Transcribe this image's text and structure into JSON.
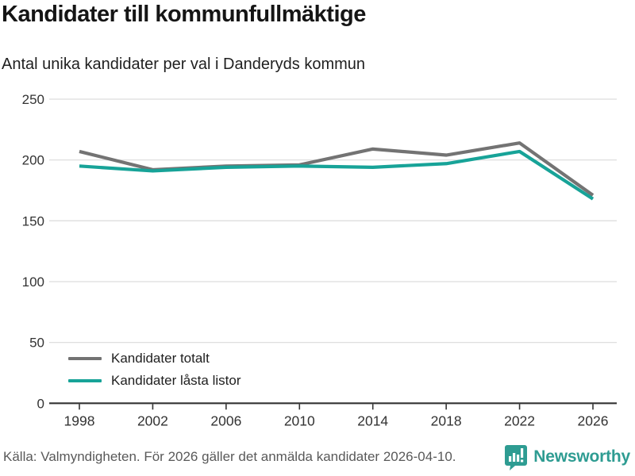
{
  "header": {
    "title": "Kandidater till kommunfullmäktige",
    "subtitle": "Antal unika kandidater per val i Danderyds kommun"
  },
  "chart_data": {
    "type": "line",
    "x": [
      1998,
      2002,
      2006,
      2010,
      2014,
      2018,
      2022,
      2026
    ],
    "series": [
      {
        "name": "Kandidater totalt",
        "color": "#737373",
        "values": [
          207,
          192,
          195,
          196,
          209,
          204,
          214,
          171
        ]
      },
      {
        "name": "Kandidater låsta listor",
        "color": "#17a398",
        "values": [
          195,
          191,
          194,
          195,
          194,
          197,
          207,
          168
        ]
      }
    ],
    "ylim": [
      0,
      250
    ],
    "yticks": [
      0,
      50,
      100,
      150,
      200,
      250
    ],
    "grid": "horizontal",
    "legend_position": "inside-bottom-left"
  },
  "footer": {
    "source": "Källa: Valmyndigheten. För 2026 gäller det anmälda kandidater 2026-04-10.",
    "logo_text": "Newsworthy"
  },
  "colors": {
    "accent_teal": "#17a398",
    "line_gray": "#737373",
    "logo_teal": "#2e9c92",
    "grid": "#dedede",
    "axis": "#333333",
    "tick_label": "#333333"
  }
}
